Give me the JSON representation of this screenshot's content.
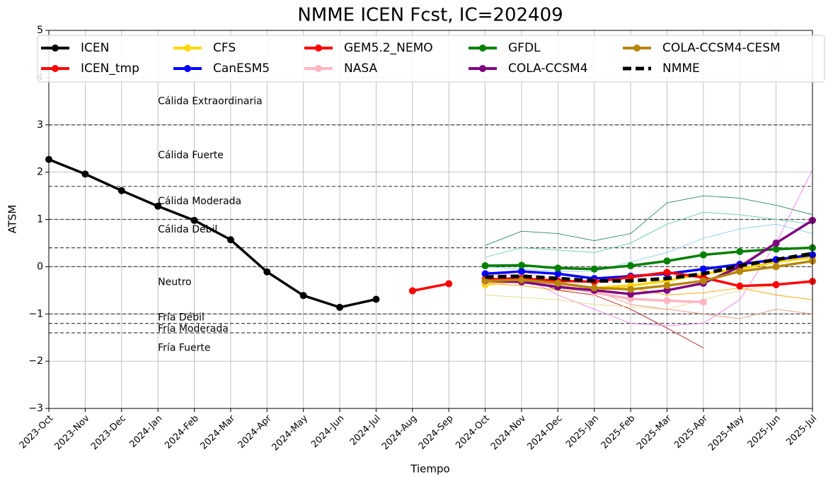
{
  "chart_data": {
    "type": "line",
    "title": "NMME ICEN Fcst, IC=202409",
    "x_label": "Tiempo",
    "y_label": "ATSM",
    "categories": [
      "2023-Oct",
      "2023-Nov",
      "2023-Dec",
      "2024-Jan",
      "2024-Feb",
      "2024-Mar",
      "2024-Apr",
      "2024-May",
      "2024-Jun",
      "2024-Jul",
      "2024-Aug",
      "2024-Sep",
      "2024-Oct",
      "2024-Nov",
      "2024-Dec",
      "2025-Jan",
      "2025-Feb",
      "2025-Mar",
      "2025-Apr",
      "2025-May",
      "2025-Jun",
      "2025-Jul"
    ],
    "ylim": [
      -3,
      5
    ],
    "yticks": [
      {
        "value": -3,
        "label": "−3"
      },
      {
        "value": -2,
        "label": "−2"
      },
      {
        "value": -1,
        "label": "−1"
      },
      0,
      1,
      2,
      3,
      4,
      5
    ],
    "grid": true,
    "thresholds": [
      3,
      1.7,
      1,
      0.4,
      0,
      -1,
      -1.2,
      -1.4
    ],
    "annotations": [
      {
        "text": "Cálida Extraordinaria",
        "y": 3.5
      },
      {
        "text": "Cálida Fuerte",
        "y": 2.35
      },
      {
        "text": "Cálida Moderada",
        "y": 1.38
      },
      {
        "text": "Cálida Débil",
        "y": 0.78
      },
      {
        "text": "Neutro",
        "y": -0.33
      },
      {
        "text": "Fría Débil",
        "y": -1.08
      },
      {
        "text": "Fría Moderada",
        "y": -1.32
      },
      {
        "text": "Fría Fuerte",
        "y": -1.72
      }
    ],
    "members": [
      {
        "color": "#2e8b57",
        "values": [
          null,
          null,
          null,
          null,
          null,
          null,
          null,
          null,
          null,
          null,
          null,
          null,
          0.45,
          0.75,
          0.7,
          0.55,
          0.7,
          1.35,
          1.5,
          1.45,
          1.3,
          1.1
        ]
      },
      {
        "color": "#b22222",
        "values": [
          null,
          null,
          null,
          null,
          null,
          null,
          null,
          null,
          null,
          null,
          null,
          null,
          -0.3,
          -0.2,
          -0.5,
          -0.6,
          -0.9,
          -1.3,
          -1.72,
          null,
          null,
          null
        ]
      },
      {
        "color": "#ee82ee",
        "values": [
          null,
          null,
          null,
          null,
          null,
          null,
          null,
          null,
          null,
          null,
          null,
          null,
          -0.1,
          -0.2,
          -0.6,
          -0.9,
          -1.2,
          -1.25,
          -1.2,
          -0.7,
          0.5,
          2.05
        ]
      },
      {
        "color": "#e8d88a",
        "values": [
          null,
          null,
          null,
          null,
          null,
          null,
          null,
          null,
          null,
          null,
          null,
          null,
          -0.6,
          -0.65,
          -0.7,
          -0.8,
          -0.85,
          -0.9,
          -0.7,
          -0.5,
          -0.4,
          -0.3
        ]
      },
      {
        "color": "#66cdaa",
        "values": [
          null,
          null,
          null,
          null,
          null,
          null,
          null,
          null,
          null,
          null,
          null,
          null,
          0.2,
          0.4,
          0.35,
          0.3,
          0.5,
          0.9,
          1.15,
          1.1,
          1.0,
          0.9
        ]
      },
      {
        "color": "#e9967a",
        "values": [
          null,
          null,
          null,
          null,
          null,
          null,
          null,
          null,
          null,
          null,
          null,
          null,
          -0.2,
          -0.1,
          -0.3,
          -0.5,
          -0.8,
          -0.9,
          -1.0,
          -1.1,
          -0.9,
          -1.0
        ]
      },
      {
        "color": "#87ceeb",
        "values": [
          null,
          null,
          null,
          null,
          null,
          null,
          null,
          null,
          null,
          null,
          null,
          null,
          0.0,
          -0.05,
          -0.1,
          -0.1,
          0.1,
          0.3,
          0.6,
          0.8,
          0.9,
          0.7
        ]
      },
      {
        "color": "#ffa500",
        "values": [
          null,
          null,
          null,
          null,
          null,
          null,
          null,
          null,
          null,
          null,
          null,
          null,
          -0.35,
          -0.4,
          -0.5,
          -0.5,
          -0.45,
          -0.6,
          -0.55,
          -0.45,
          -0.6,
          -0.7
        ]
      }
    ],
    "series": [
      {
        "name": "ICEN",
        "color": "#000000",
        "values": [
          2.27,
          1.96,
          1.61,
          1.28,
          0.98,
          0.57,
          -0.11,
          -0.61,
          -0.86,
          -0.69,
          null,
          null,
          null,
          null,
          null,
          null,
          null,
          null,
          null,
          null,
          null,
          null
        ]
      },
      {
        "name": "ICEN_tmp",
        "color": "#ff0000",
        "values": [
          null,
          null,
          null,
          null,
          null,
          null,
          null,
          null,
          null,
          null,
          -0.51,
          -0.36,
          null,
          null,
          null,
          null,
          null,
          null,
          null,
          null,
          null,
          null
        ]
      },
      {
        "name": "CFS",
        "color": "#ffd700",
        "values": [
          null,
          null,
          null,
          null,
          null,
          null,
          null,
          null,
          null,
          null,
          null,
          null,
          -0.38,
          -0.3,
          -0.35,
          -0.45,
          -0.4,
          -0.3,
          -0.15,
          -0.05,
          0.1,
          0.2
        ]
      },
      {
        "name": "CanESM5",
        "color": "#0000ff",
        "values": [
          null,
          null,
          null,
          null,
          null,
          null,
          null,
          null,
          null,
          null,
          null,
          null,
          -0.15,
          -0.1,
          -0.15,
          -0.25,
          -0.2,
          -0.15,
          -0.05,
          0.05,
          0.15,
          0.25
        ]
      },
      {
        "name": "GEM5.2_NEMO",
        "color": "#ff0000",
        "values": [
          null,
          null,
          null,
          null,
          null,
          null,
          null,
          null,
          null,
          null,
          null,
          null,
          -0.27,
          -0.25,
          -0.3,
          -0.32,
          -0.22,
          -0.12,
          -0.23,
          -0.41,
          -0.38,
          -0.31
        ]
      },
      {
        "name": "NASA",
        "color": "#ffb6c1",
        "values": [
          null,
          null,
          null,
          null,
          null,
          null,
          null,
          null,
          null,
          null,
          null,
          null,
          -0.32,
          -0.33,
          -0.4,
          -0.55,
          -0.68,
          -0.72,
          -0.75,
          null,
          null,
          null
        ]
      },
      {
        "name": "GFDL",
        "color": "#008000",
        "values": [
          null,
          null,
          null,
          null,
          null,
          null,
          null,
          null,
          null,
          null,
          null,
          null,
          0.02,
          0.03,
          -0.03,
          -0.05,
          0.02,
          0.12,
          0.25,
          0.32,
          0.37,
          0.4
        ]
      },
      {
        "name": "COLA-CCSM4",
        "color": "#800080",
        "values": [
          null,
          null,
          null,
          null,
          null,
          null,
          null,
          null,
          null,
          null,
          null,
          null,
          -0.3,
          -0.32,
          -0.43,
          -0.5,
          -0.58,
          -0.5,
          -0.35,
          0.0,
          0.5,
          0.98
        ]
      },
      {
        "name": "COLA-CCSM4-CESM",
        "color": "#b8860b",
        "values": [
          null,
          null,
          null,
          null,
          null,
          null,
          null,
          null,
          null,
          null,
          null,
          null,
          -0.3,
          -0.28,
          -0.35,
          -0.45,
          -0.48,
          -0.4,
          -0.3,
          -0.1,
          0.0,
          0.12
        ]
      },
      {
        "name": "NMME",
        "color": "#000000",
        "dashed": true,
        "values": [
          null,
          null,
          null,
          null,
          null,
          null,
          null,
          null,
          null,
          null,
          null,
          null,
          -0.22,
          -0.2,
          -0.25,
          -0.3,
          -0.3,
          -0.25,
          -0.15,
          0.02,
          0.15,
          0.28
        ]
      }
    ]
  }
}
